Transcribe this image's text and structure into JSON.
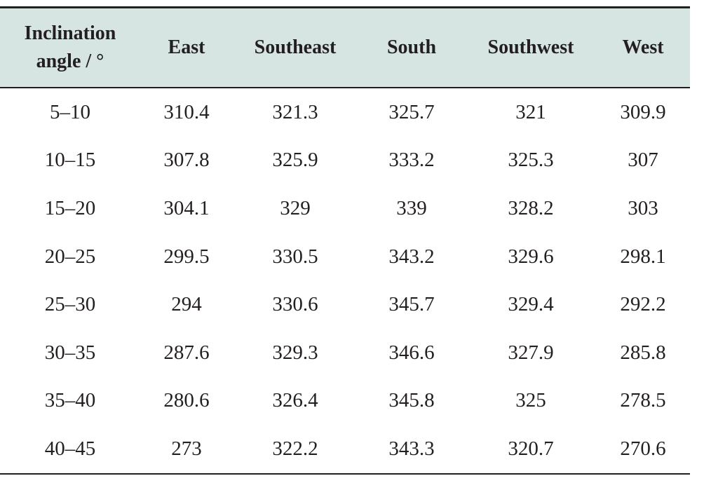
{
  "table": {
    "headers": [
      "Inclination angle / °",
      "East",
      "Southeast",
      "South",
      "Southwest",
      "West"
    ],
    "rows": [
      [
        "5–10",
        "310.4",
        "321.3",
        "325.7",
        "321",
        "309.9"
      ],
      [
        "10–15",
        "307.8",
        "325.9",
        "333.2",
        "325.3",
        "307"
      ],
      [
        "15–20",
        "304.1",
        "329",
        "339",
        "328.2",
        "303"
      ],
      [
        "20–25",
        "299.5",
        "330.5",
        "343.2",
        "329.6",
        "298.1"
      ],
      [
        "25–30",
        "294",
        "330.6",
        "345.7",
        "329.4",
        "292.2"
      ],
      [
        "30–35",
        "287.6",
        "329.3",
        "346.6",
        "327.9",
        "285.8"
      ],
      [
        "35–40",
        "280.6",
        "326.4",
        "345.8",
        "325",
        "278.5"
      ],
      [
        "40–45",
        "273",
        "322.2",
        "343.3",
        "320.7",
        "270.6"
      ]
    ]
  },
  "colors": {
    "header_background": "#d6e5e2",
    "text": "#231f20",
    "rule": "#231f20"
  }
}
